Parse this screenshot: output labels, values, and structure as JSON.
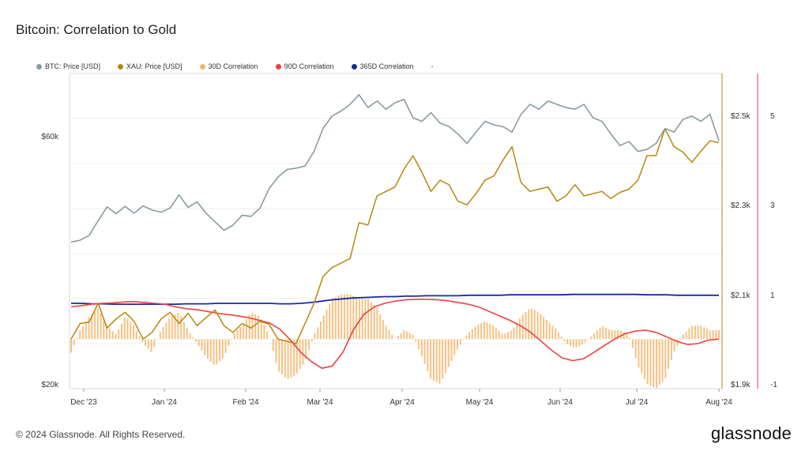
{
  "title": "Bitcoin: Correlation to Gold",
  "legend": [
    {
      "label": "BTC: Price [USD]",
      "color": "#8a9ba1"
    },
    {
      "label": "XAU: Price [USD]",
      "color": "#b8860b"
    },
    {
      "label": "30D Correlation",
      "color": "#f5b66c"
    },
    {
      "label": "90D Correlation",
      "color": "#f04040"
    },
    {
      "label": "365D Correlation",
      "color": "#1a2a9a"
    },
    {
      "label": "-",
      "color": ""
    }
  ],
  "footer": {
    "copyright": "© 2024 Glassnode. All Rights Reserved.",
    "brand": "glassnode"
  },
  "chart_data": {
    "type": "line",
    "title": "Bitcoin: Correlation to Gold",
    "x_ticks": [
      "Dec '23",
      "Jan '24",
      "Feb '24",
      "Mar '24",
      "Apr '24",
      "May '24",
      "Jun '24",
      "Jul '24",
      "Aug '24"
    ],
    "btc_axis": {
      "ticks": [
        "$60k",
        "$20k"
      ],
      "scale": "log"
    },
    "xau_axis": {
      "ticks": [
        "$2.5k",
        "$2.3k",
        "$2.1k",
        "$1.9k"
      ],
      "range": [
        1900,
        2600
      ]
    },
    "corr_axis": {
      "ticks": [
        "5",
        "3",
        "1",
        "-1"
      ],
      "range": [
        -1,
        6
      ]
    },
    "series": [
      {
        "name": "BTC: Price [USD]",
        "color": "#8a9ba1",
        "values": [
          37500,
          37800,
          38600,
          41200,
          43800,
          42500,
          43900,
          42600,
          44000,
          43200,
          42800,
          43600,
          46200,
          43700,
          44800,
          42600,
          41000,
          39500,
          40400,
          42200,
          42000,
          43600,
          47500,
          50000,
          51700,
          52000,
          52500,
          56000,
          62000,
          65500,
          67000,
          69000,
          72000,
          68000,
          70000,
          67500,
          69500,
          70500,
          65000,
          64000,
          66500,
          63500,
          62500,
          60500,
          58000,
          61000,
          64000,
          63000,
          62500,
          61000,
          66000,
          69000,
          67500,
          70000,
          69000,
          68000,
          67500,
          69000,
          65000,
          64000,
          60500,
          57500,
          58500,
          56000,
          56500,
          58000,
          62000,
          61000,
          64500,
          65500,
          64000,
          66000,
          58700
        ]
      },
      {
        "name": "XAU: Price [USD]",
        "color": "#b8860b",
        "values": [
          2000,
          2035,
          2038,
          2080,
          2025,
          2045,
          2060,
          2040,
          2000,
          2015,
          2045,
          2060,
          2035,
          2058,
          2030,
          2048,
          2065,
          2030,
          2015,
          2035,
          2025,
          2040,
          2033,
          2000,
          1995,
          1990,
          2035,
          2080,
          2140,
          2160,
          2170,
          2180,
          2260,
          2255,
          2320,
          2330,
          2340,
          2380,
          2410,
          2372,
          2330,
          2355,
          2345,
          2308,
          2300,
          2325,
          2355,
          2365,
          2400,
          2430,
          2350,
          2330,
          2335,
          2340,
          2308,
          2320,
          2345,
          2320,
          2325,
          2330,
          2314,
          2328,
          2335,
          2355,
          2410,
          2410,
          2470,
          2430,
          2418,
          2395,
          2420,
          2443,
          2439
        ]
      },
      {
        "name": "30D Correlation",
        "color": "#f5b66c",
        "values": [
          -0.3,
          0.2,
          0.5,
          0.7,
          0.3,
          0.1,
          0.5,
          0.3,
          -0.1,
          -0.3,
          0.2,
          0.5,
          0.6,
          0.2,
          -0.1,
          -0.4,
          -0.6,
          -0.4,
          0.1,
          0.3,
          0.6,
          0.5,
          0.1,
          -0.7,
          -0.9,
          -0.8,
          -0.5,
          0.1,
          0.5,
          0.9,
          1.0,
          1.0,
          0.9,
          0.9,
          0.7,
          0.3,
          0.0,
          0.2,
          0.1,
          -0.4,
          -0.9,
          -1.0,
          -0.6,
          -0.2,
          0.1,
          0.3,
          0.4,
          0.3,
          0.1,
          0.2,
          0.5,
          0.7,
          0.6,
          0.4,
          0.2,
          -0.1,
          -0.2,
          -0.1,
          0.1,
          0.3,
          0.2,
          0.2,
          0.1,
          -0.6,
          -1.0,
          -1.1,
          -0.9,
          -0.3,
          0.1,
          0.3,
          0.3,
          0.2,
          0.2
        ]
      },
      {
        "name": "90D Correlation",
        "color": "#f04040",
        "values": [
          0.72,
          0.75,
          0.78,
          0.8,
          0.81,
          0.83,
          0.84,
          0.82,
          0.8,
          0.78,
          0.72,
          0.68,
          0.66,
          0.62,
          0.58,
          0.55,
          0.52,
          0.48,
          0.42,
          0.36,
          0.22,
          -0.02,
          -0.3,
          -0.5,
          -0.65,
          -0.6,
          -0.3,
          0.2,
          0.55,
          0.72,
          0.8,
          0.85,
          0.88,
          0.89,
          0.89,
          0.88,
          0.86,
          0.82,
          0.78,
          0.72,
          0.62,
          0.52,
          0.42,
          0.3,
          0.15,
          -0.05,
          -0.25,
          -0.42,
          -0.48,
          -0.44,
          -0.3,
          -0.15,
          0.0,
          0.12,
          0.18,
          0.2,
          0.15,
          0.05,
          -0.05,
          -0.12,
          -0.1,
          -0.02,
          0.0
        ]
      },
      {
        "name": "365D Correlation",
        "color": "#1a2a9a",
        "values": [
          0.8,
          0.8,
          0.79,
          0.79,
          0.78,
          0.78,
          0.78,
          0.78,
          0.78,
          0.78,
          0.78,
          0.79,
          0.79,
          0.79,
          0.8,
          0.8,
          0.8,
          0.8,
          0.8,
          0.8,
          0.79,
          0.79,
          0.8,
          0.82,
          0.85,
          0.88,
          0.9,
          0.92,
          0.93,
          0.94,
          0.95,
          0.95,
          0.96,
          0.96,
          0.97,
          0.97,
          0.97,
          0.97,
          0.98,
          0.98,
          0.98,
          0.98,
          0.99,
          0.99,
          0.99,
          0.99,
          0.99,
          0.99,
          1.0,
          1.0,
          1.0,
          1.0,
          1.0,
          1.0,
          1.0,
          0.99,
          0.99,
          0.99,
          0.98,
          0.98,
          0.98,
          0.98,
          0.98
        ]
      }
    ]
  }
}
